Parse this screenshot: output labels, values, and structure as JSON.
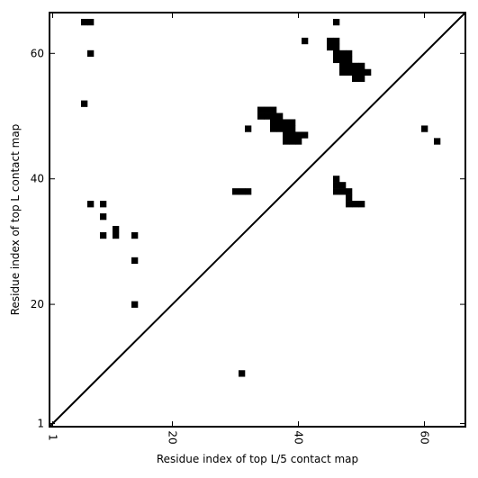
{
  "chart_data": {
    "type": "heatmap",
    "title": "",
    "xlabel": "Residue index of top L/5 contact map",
    "ylabel": "Residue index of top L contact map",
    "xlim": [
      0.5,
      66.5
    ],
    "ylim": [
      0.5,
      66.5
    ],
    "xticks": [
      "1",
      "20",
      "40",
      "60"
    ],
    "yticks": [
      "1",
      "20",
      "40",
      "60"
    ],
    "diagonal": true,
    "grid": false,
    "legend": "none",
    "contact_color": "#000000",
    "contacts_upper_left": [
      [
        6,
        65
      ],
      [
        7,
        65
      ],
      [
        7,
        60
      ],
      [
        6,
        52
      ],
      [
        7,
        36
      ],
      [
        9,
        36
      ],
      [
        9,
        34
      ],
      [
        9,
        31
      ],
      [
        11,
        32
      ],
      [
        11,
        31
      ],
      [
        14,
        31
      ],
      [
        14,
        27
      ],
      [
        14,
        20
      ],
      [
        32,
        48
      ],
      [
        30,
        38
      ],
      [
        31,
        38
      ],
      [
        32,
        38
      ],
      [
        41,
        62
      ],
      [
        46,
        65
      ],
      [
        34,
        51
      ],
      [
        35,
        51
      ],
      [
        36,
        51
      ],
      [
        34,
        50
      ],
      [
        35,
        50
      ],
      [
        36,
        50
      ],
      [
        37,
        50
      ],
      [
        36,
        49
      ],
      [
        37,
        49
      ],
      [
        38,
        49
      ],
      [
        39,
        49
      ],
      [
        36,
        48
      ],
      [
        37,
        48
      ],
      [
        38,
        48
      ],
      [
        39,
        48
      ],
      [
        38,
        47
      ],
      [
        39,
        47
      ],
      [
        40,
        47
      ],
      [
        41,
        47
      ],
      [
        38,
        46
      ],
      [
        39,
        46
      ],
      [
        40,
        46
      ],
      [
        45,
        62
      ],
      [
        46,
        62
      ],
      [
        45,
        61
      ],
      [
        46,
        61
      ],
      [
        46,
        60
      ],
      [
        47,
        60
      ],
      [
        48,
        60
      ],
      [
        46,
        59
      ],
      [
        47,
        59
      ],
      [
        48,
        59
      ],
      [
        47,
        58
      ],
      [
        48,
        58
      ],
      [
        49,
        58
      ],
      [
        50,
        58
      ],
      [
        47,
        57
      ],
      [
        48,
        57
      ],
      [
        49,
        57
      ],
      [
        50,
        57
      ],
      [
        51,
        57
      ],
      [
        49,
        56
      ],
      [
        50,
        56
      ],
      [
        46,
        40
      ],
      [
        46,
        39
      ],
      [
        47,
        39
      ],
      [
        46,
        38
      ],
      [
        47,
        38
      ],
      [
        48,
        38
      ],
      [
        48,
        37
      ],
      [
        48,
        36
      ],
      [
        49,
        36
      ],
      [
        50,
        36
      ]
    ],
    "contacts_lower_right": [
      [
        60,
        48
      ],
      [
        62,
        46
      ],
      [
        31,
        9
      ]
    ]
  }
}
